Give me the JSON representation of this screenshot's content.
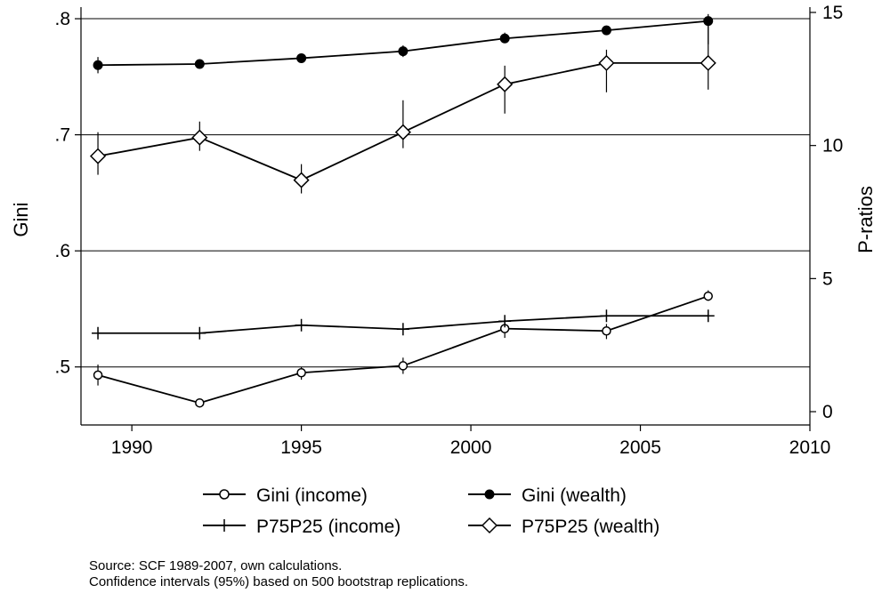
{
  "chart_data": {
    "type": "line",
    "xlabel": "",
    "ylabel_left": "Gini",
    "ylabel_right": "P-ratios",
    "xlim": [
      1988.5,
      2010
    ],
    "ylim_left": [
      0.45,
      0.81
    ],
    "ylim_right": [
      -0.5,
      15.2
    ],
    "xticks": [
      1990,
      1995,
      2000,
      2005,
      2010
    ],
    "yticks_left": [
      ".5",
      ".6",
      ".7",
      ".8"
    ],
    "yticks_left_values": [
      0.5,
      0.6,
      0.7,
      0.8
    ],
    "yticks_right": [
      "0",
      "5",
      "10",
      "15"
    ],
    "yticks_right_values": [
      0,
      5,
      10,
      15
    ],
    "gridlines_left": [
      0.5,
      0.6,
      0.7,
      0.8
    ],
    "legend_placement": "bottom",
    "series": [
      {
        "name": "Gini (income)",
        "axis": "left",
        "marker": "hollow-circle",
        "x": [
          1989,
          1992,
          1995,
          1998,
          2001,
          2004,
          2007
        ],
        "y": [
          0.493,
          0.469,
          0.495,
          0.501,
          0.533,
          0.531,
          0.561
        ],
        "ci_low": [
          0.484,
          0.467,
          0.489,
          0.494,
          0.525,
          0.524,
          0.557
        ],
        "ci_high": [
          0.502,
          0.472,
          0.5,
          0.508,
          0.541,
          0.537,
          0.566
        ]
      },
      {
        "name": "Gini (wealth)",
        "axis": "left",
        "marker": "filled-circle",
        "x": [
          1989,
          1992,
          1995,
          1998,
          2001,
          2004,
          2007
        ],
        "y": [
          0.76,
          0.761,
          0.766,
          0.772,
          0.783,
          0.79,
          0.798
        ],
        "ci_low": [
          0.753,
          0.758,
          0.762,
          0.767,
          0.779,
          0.786,
          0.778
        ],
        "ci_high": [
          0.767,
          0.764,
          0.77,
          0.777,
          0.788,
          0.794,
          0.804
        ]
      },
      {
        "name": "P75P25 (income)",
        "axis": "right",
        "marker": "plus",
        "x": [
          1989,
          1992,
          1995,
          1998,
          2001,
          2004,
          2007
        ],
        "y": [
          2.95,
          2.95,
          3.25,
          3.1,
          3.4,
          3.6,
          3.6
        ]
      },
      {
        "name": "P75P25 (wealth)",
        "axis": "right",
        "marker": "hollow-diamond",
        "x": [
          1989,
          1992,
          1995,
          1998,
          2001,
          2004,
          2007
        ],
        "y": [
          9.6,
          10.3,
          8.7,
          10.5,
          12.3,
          13.1,
          13.1
        ],
        "ci_low": [
          8.9,
          9.8,
          8.2,
          9.9,
          11.2,
          12.0,
          12.1
        ],
        "ci_high": [
          10.5,
          10.9,
          9.3,
          11.7,
          13.0,
          13.6,
          14.8
        ]
      }
    ],
    "legend": [
      "Gini (income)",
      "Gini (wealth)",
      "P75P25 (income)",
      "P75P25 (wealth)"
    ],
    "notes": [
      "Source: SCF 1989-2007, own calculations.",
      "Confidence intervals (95%) based on 500 bootstrap replications."
    ]
  }
}
